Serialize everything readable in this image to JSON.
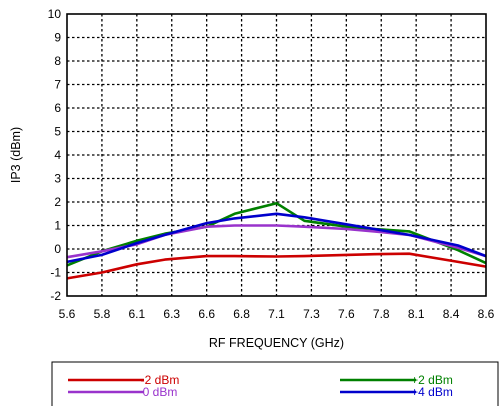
{
  "chart_data": {
    "type": "line",
    "xlabel": "RF FREQUENCY (GHz)",
    "ylabel": "IP3 (dBm)",
    "xlim": [
      5.6,
      8.6
    ],
    "ylim": [
      -2,
      10
    ],
    "x_ticks": [
      "5.6",
      "5.8",
      "6.1",
      "6.3",
      "6.6",
      "6.8",
      "7.1",
      "7.3",
      "7.6",
      "7.8",
      "8.1",
      "8.4",
      "8.6"
    ],
    "y_ticks": [
      "10",
      "9",
      "8",
      "7",
      "6",
      "5",
      "4",
      "3",
      "2",
      "1",
      "0",
      "-1",
      "-2"
    ],
    "grid": true,
    "legend_position": "bottom",
    "series": [
      {
        "name": "-2 dBm",
        "color": "#cc0000",
        "x": [
          5.6,
          5.85,
          6.1,
          6.3,
          6.6,
          6.8,
          7.1,
          7.3,
          7.6,
          7.8,
          8.05,
          8.4,
          8.6
        ],
        "values": [
          -1.25,
          -1.0,
          -0.65,
          -0.45,
          -0.3,
          -0.3,
          -0.32,
          -0.3,
          -0.25,
          -0.22,
          -0.2,
          -0.55,
          -0.75
        ]
      },
      {
        "name": "+2 dBm",
        "color": "#008000",
        "x": [
          5.6,
          5.85,
          6.1,
          6.3,
          6.6,
          6.8,
          7.1,
          7.3,
          7.6,
          7.8,
          8.05,
          8.4,
          8.6
        ],
        "values": [
          -0.7,
          -0.1,
          0.35,
          0.65,
          0.95,
          1.5,
          1.95,
          1.2,
          0.95,
          0.85,
          0.75,
          -0.05,
          -0.6
        ]
      },
      {
        "name": "0 dBm",
        "color": "#9933cc",
        "x": [
          5.6,
          5.85,
          6.1,
          6.3,
          6.6,
          6.8,
          7.1,
          7.3,
          7.6,
          7.8,
          8.05,
          8.4,
          8.6
        ],
        "values": [
          -0.35,
          -0.1,
          0.2,
          0.6,
          0.95,
          1.0,
          1.0,
          0.95,
          0.85,
          0.75,
          0.6,
          0.05,
          -0.3
        ]
      },
      {
        "name": "+4 dBm",
        "color": "#0000cc",
        "x": [
          5.6,
          5.85,
          6.1,
          6.3,
          6.6,
          6.8,
          7.1,
          7.3,
          7.6,
          7.8,
          8.05,
          8.4,
          8.6
        ],
        "values": [
          -0.55,
          -0.25,
          0.25,
          0.6,
          1.1,
          1.3,
          1.5,
          1.35,
          1.05,
          0.85,
          0.6,
          0.15,
          -0.3
        ]
      }
    ]
  }
}
